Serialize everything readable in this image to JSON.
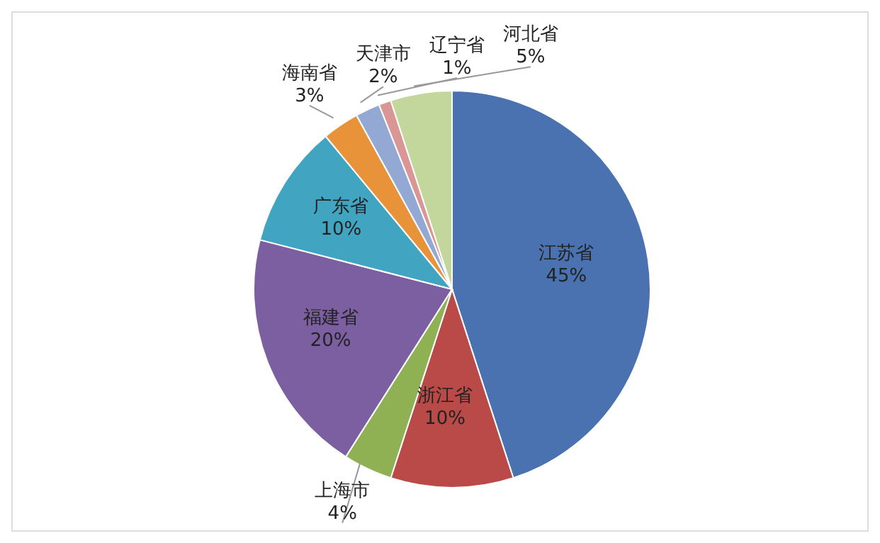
{
  "chart_data": {
    "type": "pie",
    "categories": [
      "江苏省",
      "浙江省",
      "上海市",
      "福建省",
      "广东省",
      "海南省",
      "天津市",
      "辽宁省",
      "河北省"
    ],
    "values": [
      45,
      10,
      4,
      20,
      10,
      3,
      2,
      1,
      5
    ],
    "value_labels": [
      "45%",
      "10%",
      "4%",
      "20%",
      "10%",
      "3%",
      "2%",
      "1%",
      "5%"
    ],
    "colors": [
      "#4a72b0",
      "#b94a48",
      "#8fb153",
      "#7b5fa0",
      "#41a4c0",
      "#e8923a",
      "#93a9d3",
      "#d99694",
      "#c3d69b"
    ],
    "legend": false
  }
}
